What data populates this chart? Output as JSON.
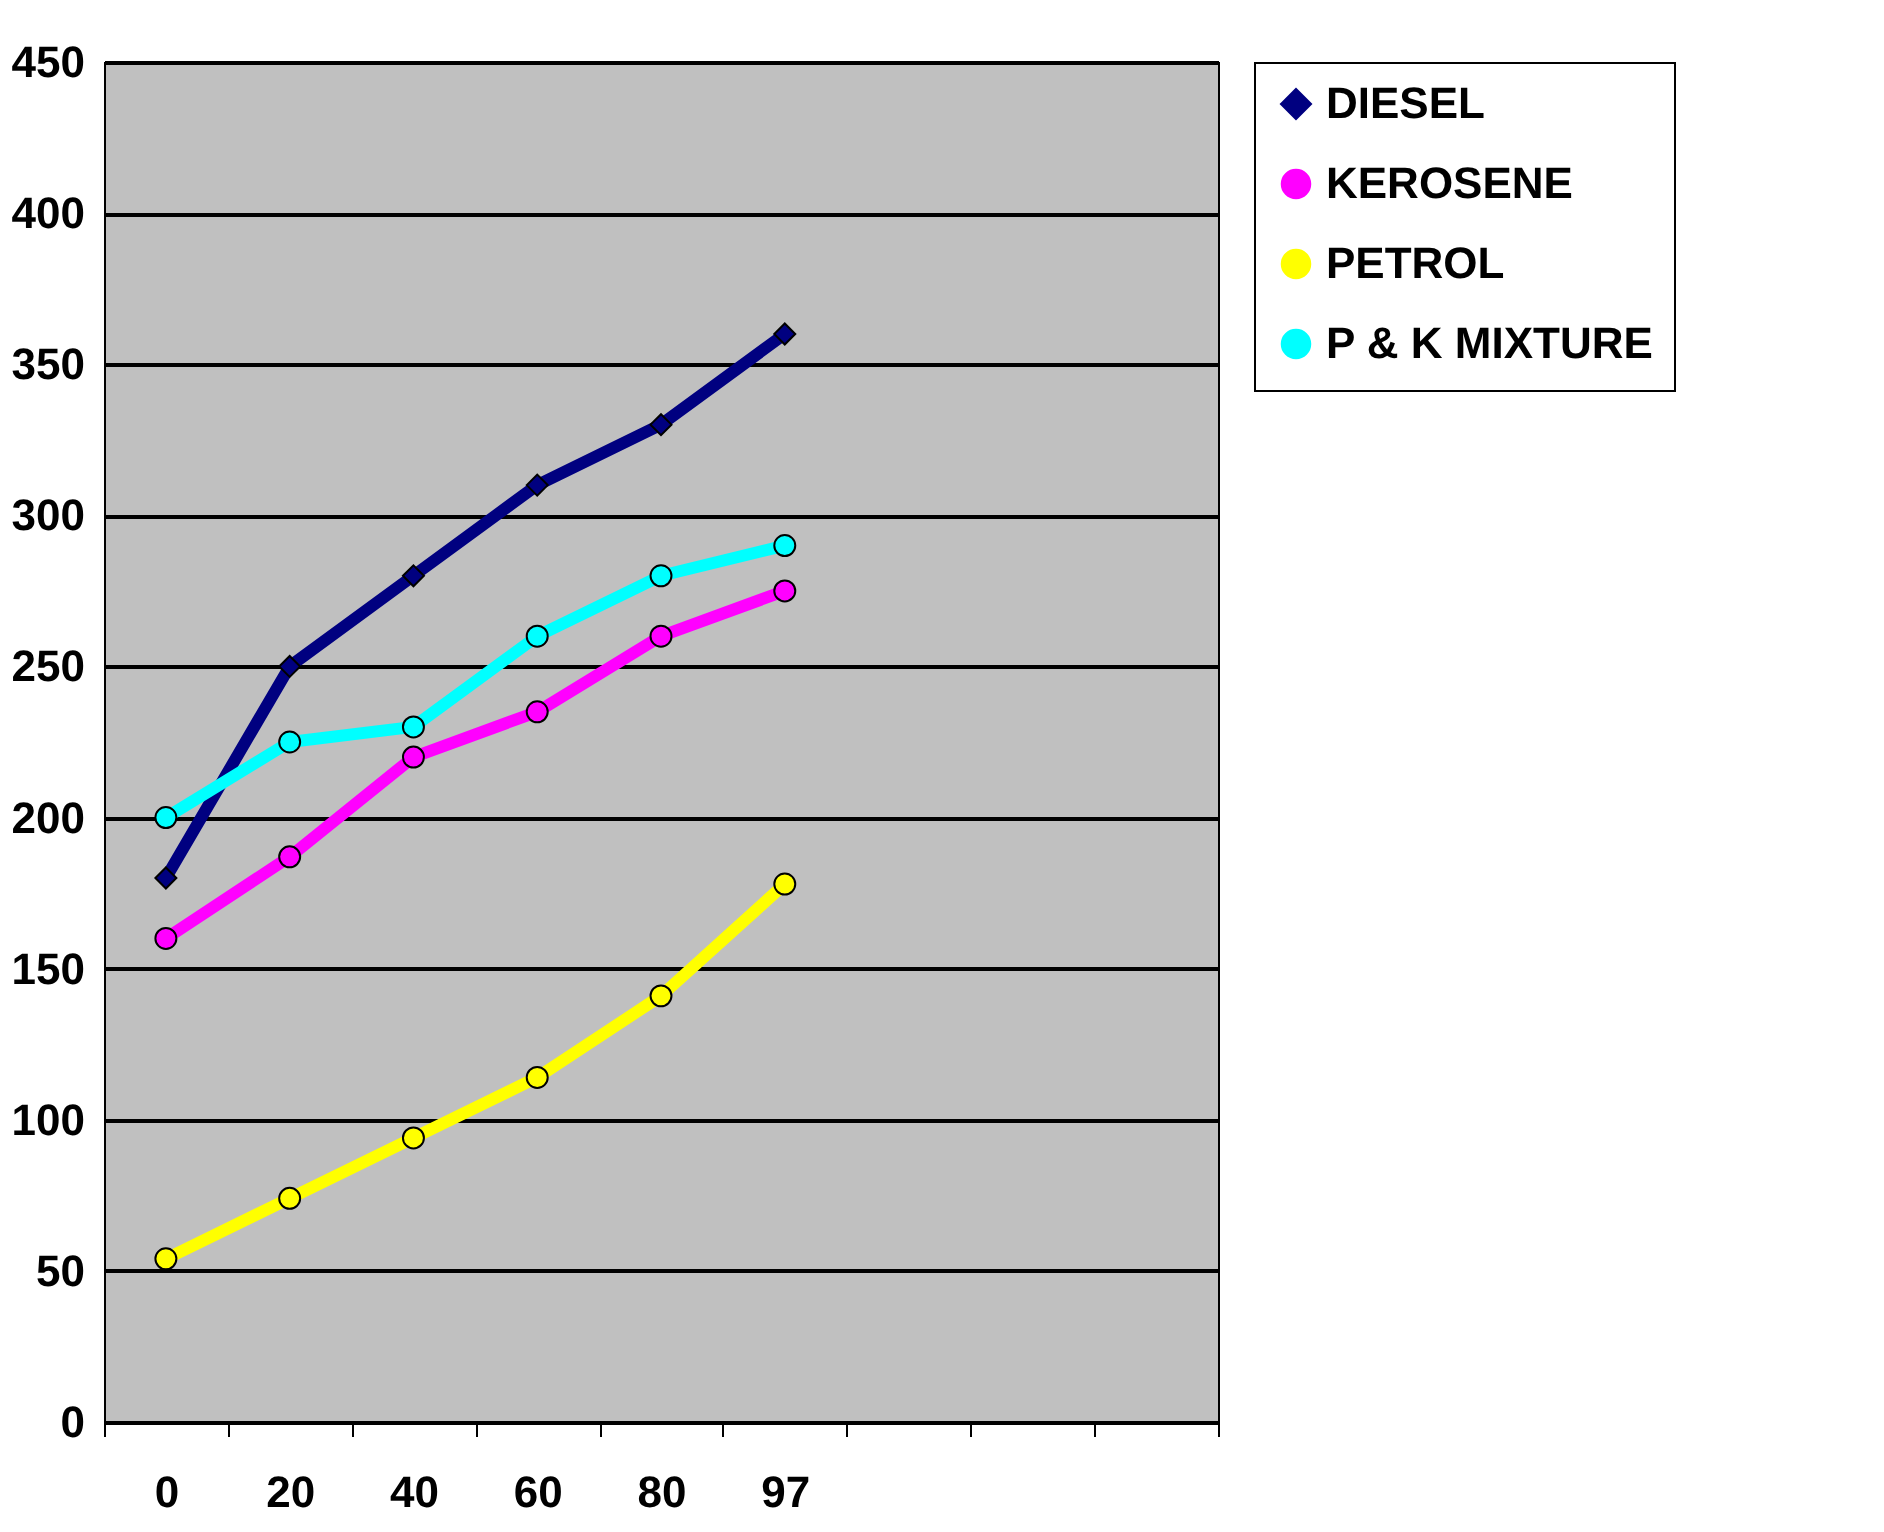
{
  "chart_data": {
    "type": "line",
    "categories": [
      "0",
      "20",
      "40",
      "60",
      "80",
      "97",
      null,
      null,
      null
    ],
    "series": [
      {
        "name": "DIESEL",
        "color": "#000080",
        "marker": "diamond",
        "values": [
          180,
          250,
          280,
          310,
          330,
          360,
          null,
          null,
          null
        ]
      },
      {
        "name": "KEROSENE",
        "color": "#ff00ff",
        "values": [
          160,
          187,
          220,
          235,
          260,
          275,
          null,
          null,
          null
        ]
      },
      {
        "name": "PETROL",
        "color": "#ffff00",
        "values": [
          54,
          74,
          94,
          114,
          141,
          178,
          null,
          null,
          null
        ]
      },
      {
        "name": "P & K MIXTURE",
        "color": "#00ffff",
        "values": [
          200,
          225,
          230,
          260,
          280,
          290,
          null,
          null,
          null
        ]
      }
    ],
    "ylim": [
      0,
      450
    ],
    "yticks": [
      0,
      50,
      100,
      150,
      200,
      250,
      300,
      350,
      400,
      450
    ],
    "grid": "y",
    "legend": "right",
    "marker": "circle",
    "line_style": "solid"
  }
}
